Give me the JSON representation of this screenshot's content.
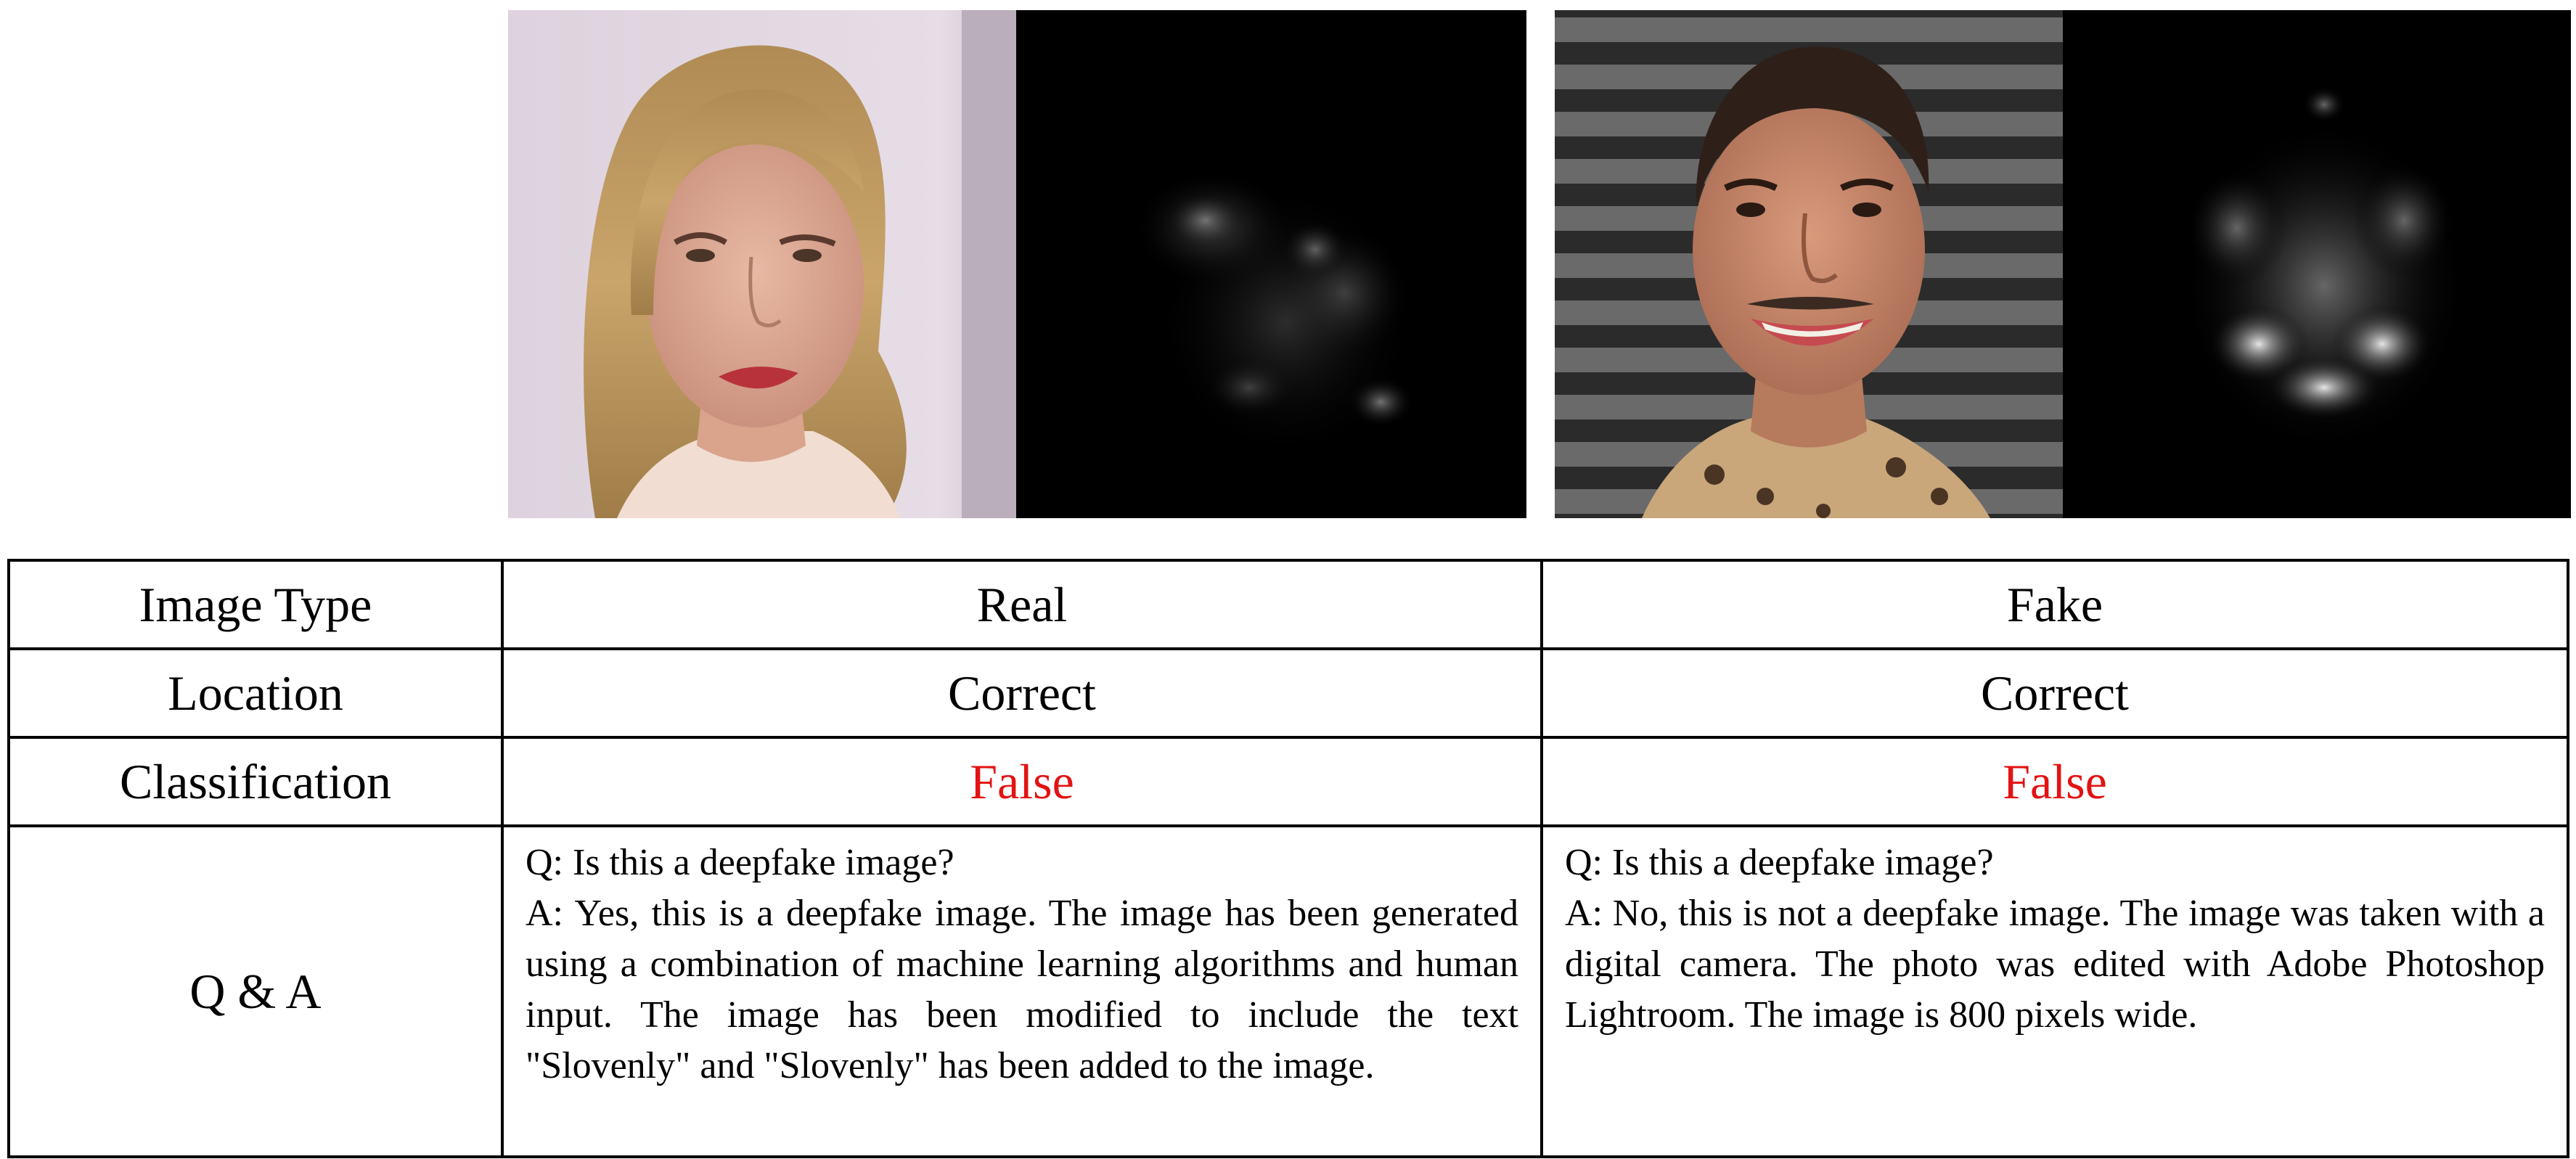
{
  "figure": {
    "panels": [
      {
        "kind": "real",
        "photo_icon": "face-photo-blonde-woman",
        "heatmap_icon": "attention-heatmap"
      },
      {
        "kind": "fake",
        "photo_icon": "face-photo-smiling-person",
        "heatmap_icon": "attention-heatmap"
      }
    ]
  },
  "table": {
    "rows": [
      {
        "label": "Image Type",
        "real": "Real",
        "fake": "Fake"
      },
      {
        "label": "Location",
        "real": "Correct",
        "fake": "Correct"
      },
      {
        "label": "Classification",
        "real": "False",
        "fake": "False"
      }
    ],
    "qa": {
      "label": "Q & A",
      "real": {
        "question": "Q: Is this a deepfake image?",
        "answer": "A: Yes, this is a deepfake image. The image has been generated using a combination of machine learning algorithms and human input. The image has been modified to include the text \"Slovenly\" and \"Slovenly\" has been added to the image."
      },
      "fake": {
        "question": "Q: Is this a deepfake image?",
        "answer": "A: No, this is not a deepfake image. The image was taken with a digital camera. The photo was edited with Adobe Photoshop Lightroom. The image is 800 pixels wide."
      }
    }
  },
  "colors": {
    "false_text": "#e31313",
    "border": "#000000"
  }
}
